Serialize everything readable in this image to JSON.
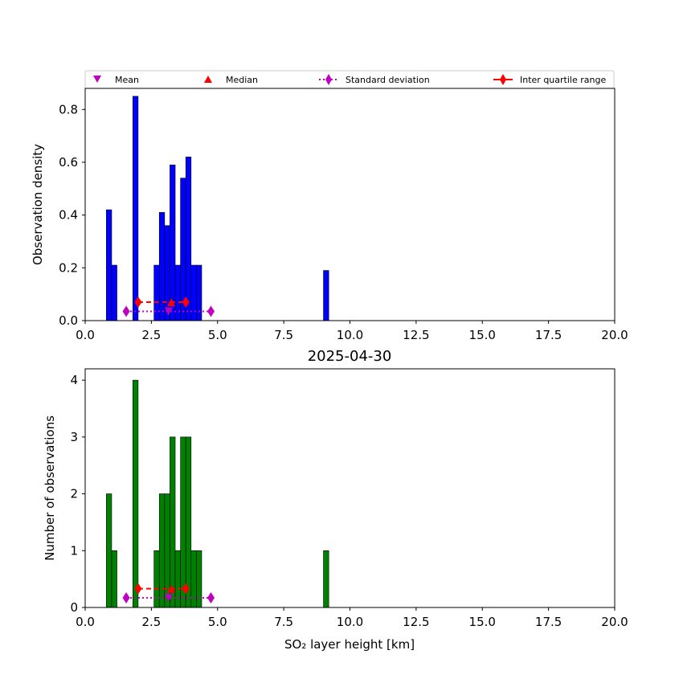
{
  "legend": {
    "items": [
      {
        "label": "Mean",
        "marker": "triangle-down",
        "color": "#bf00bf",
        "line": "none"
      },
      {
        "label": "Median",
        "marker": "triangle-up",
        "color": "#ff0000",
        "line": "none"
      },
      {
        "label": "Standard deviation",
        "marker": "diamond",
        "color": "#bf00bf",
        "line": "dotted"
      },
      {
        "label": "Inter quartile range",
        "marker": "diamond",
        "color": "#ff0000",
        "line": "solid"
      }
    ]
  },
  "chart_data": [
    {
      "type": "bar",
      "title": "",
      "xlabel": "",
      "ylabel": "Observation density",
      "xlim": [
        0,
        20
      ],
      "ylim": [
        0,
        0.88
      ],
      "xticks": [
        0.0,
        2.5,
        5.0,
        7.5,
        10.0,
        12.5,
        15.0,
        17.5,
        20.0
      ],
      "xtick_labels": [
        "0.0",
        "2.5",
        "5.0",
        "7.5",
        "10.0",
        "12.5",
        "15.0",
        "17.5",
        "20.0"
      ],
      "yticks": [
        0.0,
        0.2,
        0.4,
        0.6,
        0.8
      ],
      "ytick_labels": [
        "0.0",
        "0.2",
        "0.4",
        "0.6",
        "0.8"
      ],
      "bar_color": "#0000ff",
      "bins": [
        {
          "x0": 0.8,
          "x1": 1.0,
          "value": 0.42
        },
        {
          "x0": 1.0,
          "x1": 1.2,
          "value": 0.21
        },
        {
          "x0": 1.8,
          "x1": 2.0,
          "value": 0.85
        },
        {
          "x0": 2.6,
          "x1": 2.8,
          "value": 0.21
        },
        {
          "x0": 2.8,
          "x1": 3.0,
          "value": 0.41
        },
        {
          "x0": 3.0,
          "x1": 3.2,
          "value": 0.36
        },
        {
          "x0": 3.2,
          "x1": 3.4,
          "value": 0.59
        },
        {
          "x0": 3.4,
          "x1": 3.6,
          "value": 0.21
        },
        {
          "x0": 3.6,
          "x1": 3.8,
          "value": 0.54
        },
        {
          "x0": 3.8,
          "x1": 4.0,
          "value": 0.62
        },
        {
          "x0": 4.0,
          "x1": 4.2,
          "value": 0.21
        },
        {
          "x0": 4.2,
          "x1": 4.4,
          "value": 0.21
        },
        {
          "x0": 9.0,
          "x1": 9.2,
          "value": 0.19
        }
      ],
      "statistics": {
        "mean": {
          "x": 3.15,
          "y": 0.035
        },
        "median": {
          "x": 3.25,
          "y": 0.07
        },
        "std_range": {
          "x0": 1.55,
          "x1": 4.75,
          "y": 0.035
        },
        "iqr_range": {
          "x0": 2.0,
          "x1": 3.8,
          "y": 0.07
        }
      }
    },
    {
      "type": "bar",
      "title": "2025-04-30",
      "xlabel": "SO₂ layer height [km]",
      "ylabel": "Number of observations",
      "xlim": [
        0,
        20
      ],
      "ylim": [
        0,
        4.2
      ],
      "xticks": [
        0.0,
        2.5,
        5.0,
        7.5,
        10.0,
        12.5,
        15.0,
        17.5,
        20.0
      ],
      "xtick_labels": [
        "0.0",
        "2.5",
        "5.0",
        "7.5",
        "10.0",
        "12.5",
        "15.0",
        "17.5",
        "20.0"
      ],
      "yticks": [
        0,
        1,
        2,
        3,
        4
      ],
      "ytick_labels": [
        "0",
        "1",
        "2",
        "3",
        "4"
      ],
      "bar_color": "#008000",
      "bins": [
        {
          "x0": 0.8,
          "x1": 1.0,
          "value": 2
        },
        {
          "x0": 1.0,
          "x1": 1.2,
          "value": 1
        },
        {
          "x0": 1.8,
          "x1": 2.0,
          "value": 4
        },
        {
          "x0": 2.6,
          "x1": 2.8,
          "value": 1
        },
        {
          "x0": 2.8,
          "x1": 3.0,
          "value": 2
        },
        {
          "x0": 3.0,
          "x1": 3.2,
          "value": 2
        },
        {
          "x0": 3.2,
          "x1": 3.4,
          "value": 3
        },
        {
          "x0": 3.4,
          "x1": 3.6,
          "value": 1
        },
        {
          "x0": 3.6,
          "x1": 3.8,
          "value": 3
        },
        {
          "x0": 3.8,
          "x1": 4.0,
          "value": 3
        },
        {
          "x0": 4.0,
          "x1": 4.2,
          "value": 1
        },
        {
          "x0": 4.2,
          "x1": 4.4,
          "value": 1
        },
        {
          "x0": 9.0,
          "x1": 9.2,
          "value": 1
        }
      ],
      "statistics": {
        "mean": {
          "x": 3.15,
          "y": 0.17
        },
        "median": {
          "x": 3.25,
          "y": 0.33
        },
        "std_range": {
          "x0": 1.55,
          "x1": 4.75,
          "y": 0.17
        },
        "iqr_range": {
          "x0": 2.0,
          "x1": 3.8,
          "y": 0.33
        }
      }
    }
  ]
}
